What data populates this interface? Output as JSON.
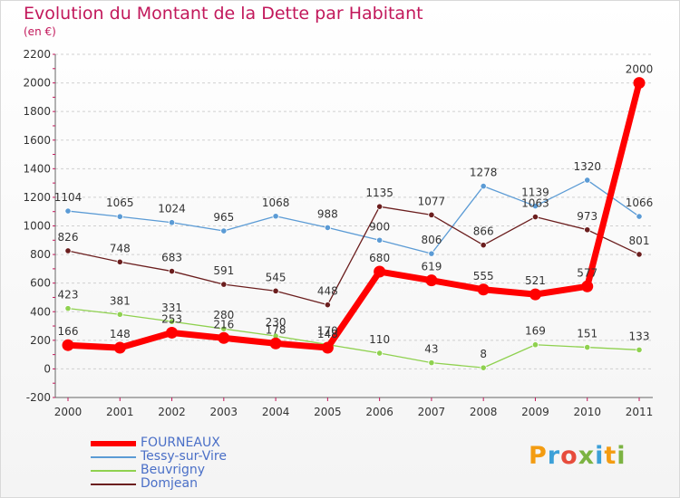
{
  "header": {
    "title": "Evolution du Montant de la Dette par Habitant",
    "subtitle": "(en €)"
  },
  "brand": {
    "logo_text": "Proxiti",
    "logo_colors": [
      "#f39c12",
      "#3ca0d8",
      "#e74c3c",
      "#7cb342",
      "#3ca0d8",
      "#f39c12",
      "#7cb342"
    ]
  },
  "chart_data": {
    "type": "line",
    "title": "Evolution du Montant de la Dette par Habitant",
    "subtitle": "(en €)",
    "xlabel": "",
    "ylabel": "",
    "x": [
      2000,
      2001,
      2002,
      2003,
      2004,
      2005,
      2006,
      2007,
      2008,
      2009,
      2010,
      2011
    ],
    "ylim": [
      -200,
      2200
    ],
    "yticks": [
      -200,
      0,
      200,
      400,
      600,
      800,
      1000,
      1200,
      1400,
      1600,
      1800,
      2000,
      2200
    ],
    "grid": "horizontal-dashed",
    "legend_position": "bottom-left",
    "series": [
      {
        "name": "FOURNEAUX",
        "color": "#ff0000",
        "emphasis": true,
        "values": [
          166,
          148,
          253,
          216,
          178,
          148,
          680,
          619,
          555,
          521,
          577,
          2000
        ]
      },
      {
        "name": "Tessy-sur-Vire",
        "color": "#5b9bd5",
        "values": [
          1104,
          1065,
          1024,
          965,
          1068,
          988,
          900,
          806,
          1278,
          1139,
          1320,
          1066
        ]
      },
      {
        "name": "Beuvrigny",
        "color": "#8fd14f",
        "values": [
          423,
          381,
          331,
          280,
          230,
          170,
          110,
          43,
          8,
          169,
          151,
          133
        ]
      },
      {
        "name": "Domjean",
        "color": "#6b1e1e",
        "values": [
          826,
          748,
          683,
          591,
          545,
          448,
          1135,
          1077,
          866,
          1063,
          973,
          801
        ]
      }
    ]
  }
}
